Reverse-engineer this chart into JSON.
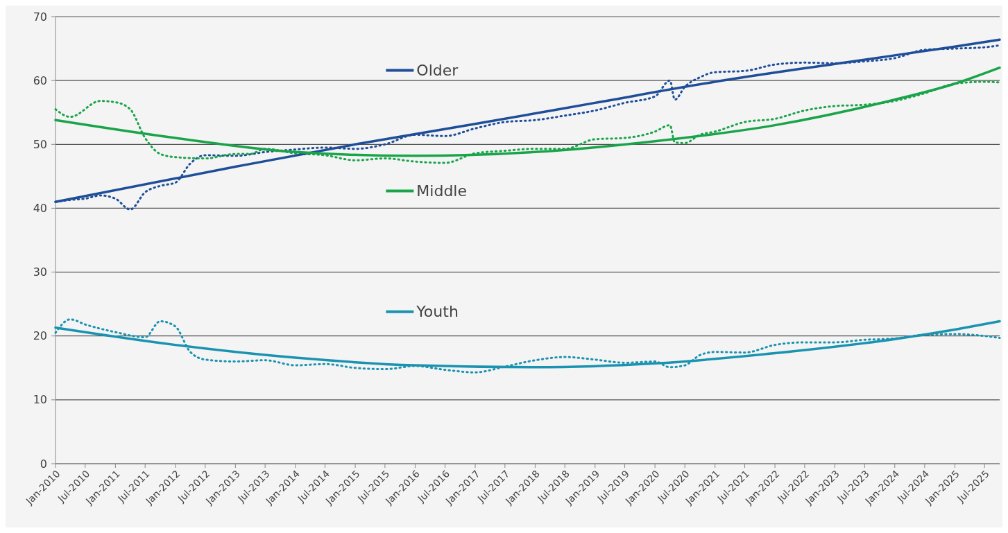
{
  "chart_data": {
    "type": "line",
    "xlim": [
      "2010-01",
      "2025-10"
    ],
    "ylim": [
      0,
      70
    ],
    "yticks": [
      0,
      10,
      20,
      30,
      40,
      50,
      60,
      70
    ],
    "xticks": [
      {
        "value": "2010-01",
        "label": "Jan-2010"
      },
      {
        "value": "2010-07",
        "label": "Jul-2010"
      },
      {
        "value": "2011-01",
        "label": "Jan-2011"
      },
      {
        "value": "2011-07",
        "label": "Jul-2011"
      },
      {
        "value": "2012-01",
        "label": "Jan-2012"
      },
      {
        "value": "2012-07",
        "label": "Jul-2012"
      },
      {
        "value": "2013-01",
        "label": "Jan-2013"
      },
      {
        "value": "2013-07",
        "label": "Jul-2013"
      },
      {
        "value": "2014-01",
        "label": "Jan-2014"
      },
      {
        "value": "2014-07",
        "label": "Jul-2014"
      },
      {
        "value": "2015-01",
        "label": "Jan-2015"
      },
      {
        "value": "2015-07",
        "label": "Jul-2015"
      },
      {
        "value": "2016-01",
        "label": "Jan-2016"
      },
      {
        "value": "2016-07",
        "label": "Jul-2016"
      },
      {
        "value": "2017-01",
        "label": "Jan-2017"
      },
      {
        "value": "2017-07",
        "label": "Jul-2017"
      },
      {
        "value": "2018-01",
        "label": "Jan-2018"
      },
      {
        "value": "2018-07",
        "label": "Jul-2018"
      },
      {
        "value": "2019-01",
        "label": "Jan-2019"
      },
      {
        "value": "2019-07",
        "label": "Jul-2019"
      },
      {
        "value": "2020-01",
        "label": "Jan-2020"
      },
      {
        "value": "2020-07",
        "label": "Jul-2020"
      },
      {
        "value": "2021-01",
        "label": "Jan-2021"
      },
      {
        "value": "2021-07",
        "label": "Jul-2021"
      },
      {
        "value": "2022-01",
        "label": "Jan-2022"
      },
      {
        "value": "2022-07",
        "label": "Jul-2022"
      },
      {
        "value": "2023-01",
        "label": "Jan-2023"
      },
      {
        "value": "2023-07",
        "label": "Jul-2023"
      },
      {
        "value": "2024-01",
        "label": "Jan-2024"
      },
      {
        "value": "2024-07",
        "label": "Jul-2024"
      },
      {
        "value": "2025-01",
        "label": "Jan-2025"
      },
      {
        "value": "2025-07",
        "label": "Jul-2025"
      }
    ],
    "grid": "y",
    "legend": "top",
    "marker": "none",
    "series": [
      {
        "line_style": "dotted",
        "color": "#1f4e99",
        "x": [
          "2010-01",
          "2010-04",
          "2010-07",
          "2010-10",
          "2011-01",
          "2011-04",
          "2011-07",
          "2011-10",
          "2012-01",
          "2012-04",
          "2012-07",
          "2013-01",
          "2013-07",
          "2014-01",
          "2014-07",
          "2015-01",
          "2015-07",
          "2016-01",
          "2016-07",
          "2017-01",
          "2017-07",
          "2018-01",
          "2018-07",
          "2019-01",
          "2019-07",
          "2020-01",
          "2020-04",
          "2020-05",
          "2020-07",
          "2020-10",
          "2021-01",
          "2021-07",
          "2022-01",
          "2022-07",
          "2023-01",
          "2023-07",
          "2024-01",
          "2024-07",
          "2025-01",
          "2025-07",
          "2025-10"
        ],
        "values": [
          41,
          41.3,
          41.5,
          42,
          41.5,
          39.8,
          42.5,
          43.5,
          44,
          47,
          48.3,
          48.2,
          48.8,
          49.2,
          49.5,
          49.3,
          50,
          51.5,
          51.3,
          52.5,
          53.5,
          53.8,
          54.5,
          55.3,
          56.5,
          57.5,
          60,
          57,
          59,
          60.5,
          61.3,
          61.5,
          62.5,
          62.8,
          62.7,
          63,
          63.5,
          64.8,
          65,
          65.2,
          65.5
        ]
      },
      {
        "line_style": "dotted",
        "color": "#1aa44a",
        "x": [
          "2010-01",
          "2010-04",
          "2010-10",
          "2011-01",
          "2011-04",
          "2011-07",
          "2011-10",
          "2012-01",
          "2012-07",
          "2013-01",
          "2013-04",
          "2013-07",
          "2014-01",
          "2014-07",
          "2015-01",
          "2015-07",
          "2016-01",
          "2016-07",
          "2017-01",
          "2017-07",
          "2018-01",
          "2018-07",
          "2019-01",
          "2019-07",
          "2020-01",
          "2020-04",
          "2020-05",
          "2020-07",
          "2020-10",
          "2021-01",
          "2021-07",
          "2022-01",
          "2022-07",
          "2023-01",
          "2023-07",
          "2024-01",
          "2024-07",
          "2025-01",
          "2025-07",
          "2025-10"
        ],
        "values": [
          55.5,
          54.3,
          56.8,
          56.6,
          55.5,
          51,
          48.5,
          48,
          47.8,
          48.5,
          48.5,
          49.3,
          48.6,
          48.3,
          47.5,
          47.8,
          47.3,
          47.1,
          48.6,
          49,
          49.3,
          49.3,
          50.8,
          51,
          52,
          53,
          50.3,
          50.2,
          51.5,
          52,
          53.5,
          54,
          55.3,
          56,
          56.2,
          56.8,
          58,
          59.5,
          59.8,
          59.7
        ]
      },
      {
        "line_style": "dotted",
        "color": "#1a93b0",
        "x": [
          "2010-01",
          "2010-04",
          "2010-07",
          "2011-01",
          "2011-07",
          "2011-10",
          "2012-01",
          "2012-04",
          "2012-07",
          "2013-01",
          "2013-07",
          "2014-01",
          "2014-07",
          "2015-01",
          "2015-07",
          "2016-01",
          "2016-07",
          "2017-01",
          "2017-07",
          "2018-01",
          "2018-07",
          "2019-01",
          "2019-07",
          "2020-01",
          "2020-04",
          "2020-07",
          "2020-10",
          "2021-01",
          "2021-07",
          "2022-01",
          "2022-07",
          "2023-01",
          "2023-07",
          "2024-01",
          "2024-07",
          "2025-01",
          "2025-07",
          "2025-10"
        ],
        "values": [
          20.5,
          22.6,
          21.8,
          20.6,
          19.8,
          22.3,
          21.5,
          17.5,
          16.3,
          16,
          16.2,
          15.4,
          15.6,
          15,
          14.8,
          15.3,
          14.7,
          14.3,
          15.2,
          16.2,
          16.7,
          16.3,
          15.8,
          16,
          15.1,
          15.4,
          17,
          17.5,
          17.4,
          18.6,
          19,
          19,
          19.4,
          19.6,
          20.2,
          20.3,
          20,
          19.7
        ]
      },
      {
        "name": "Older",
        "line_style": "solid",
        "color": "#1f4e99",
        "x": [
          "2010-01",
          "2013-01",
          "2015-01",
          "2017-01",
          "2019-01",
          "2021-01",
          "2023-01",
          "2025-01",
          "2025-10"
        ],
        "values": [
          41,
          46.5,
          50,
          53.2,
          56.5,
          59.8,
          62.6,
          65.3,
          66.4
        ]
      },
      {
        "name": "Middle",
        "line_style": "solid",
        "color": "#1aa44a",
        "x": [
          "2010-01",
          "2012-01",
          "2014-01",
          "2016-01",
          "2018-01",
          "2020-01",
          "2022-01",
          "2024-01",
          "2025-01",
          "2025-10"
        ],
        "values": [
          53.8,
          51,
          48.8,
          48.2,
          48.8,
          50.5,
          53,
          57,
          59.5,
          62
        ]
      },
      {
        "name": "Youth",
        "line_style": "solid",
        "color": "#1a93b0",
        "x": [
          "2010-01",
          "2012-01",
          "2014-01",
          "2016-01",
          "2018-01",
          "2020-01",
          "2022-01",
          "2024-01",
          "2025-01",
          "2025-10"
        ],
        "values": [
          21.3,
          18.6,
          16.6,
          15.4,
          15.1,
          15.7,
          17.3,
          19.5,
          21,
          22.3
        ]
      }
    ]
  }
}
